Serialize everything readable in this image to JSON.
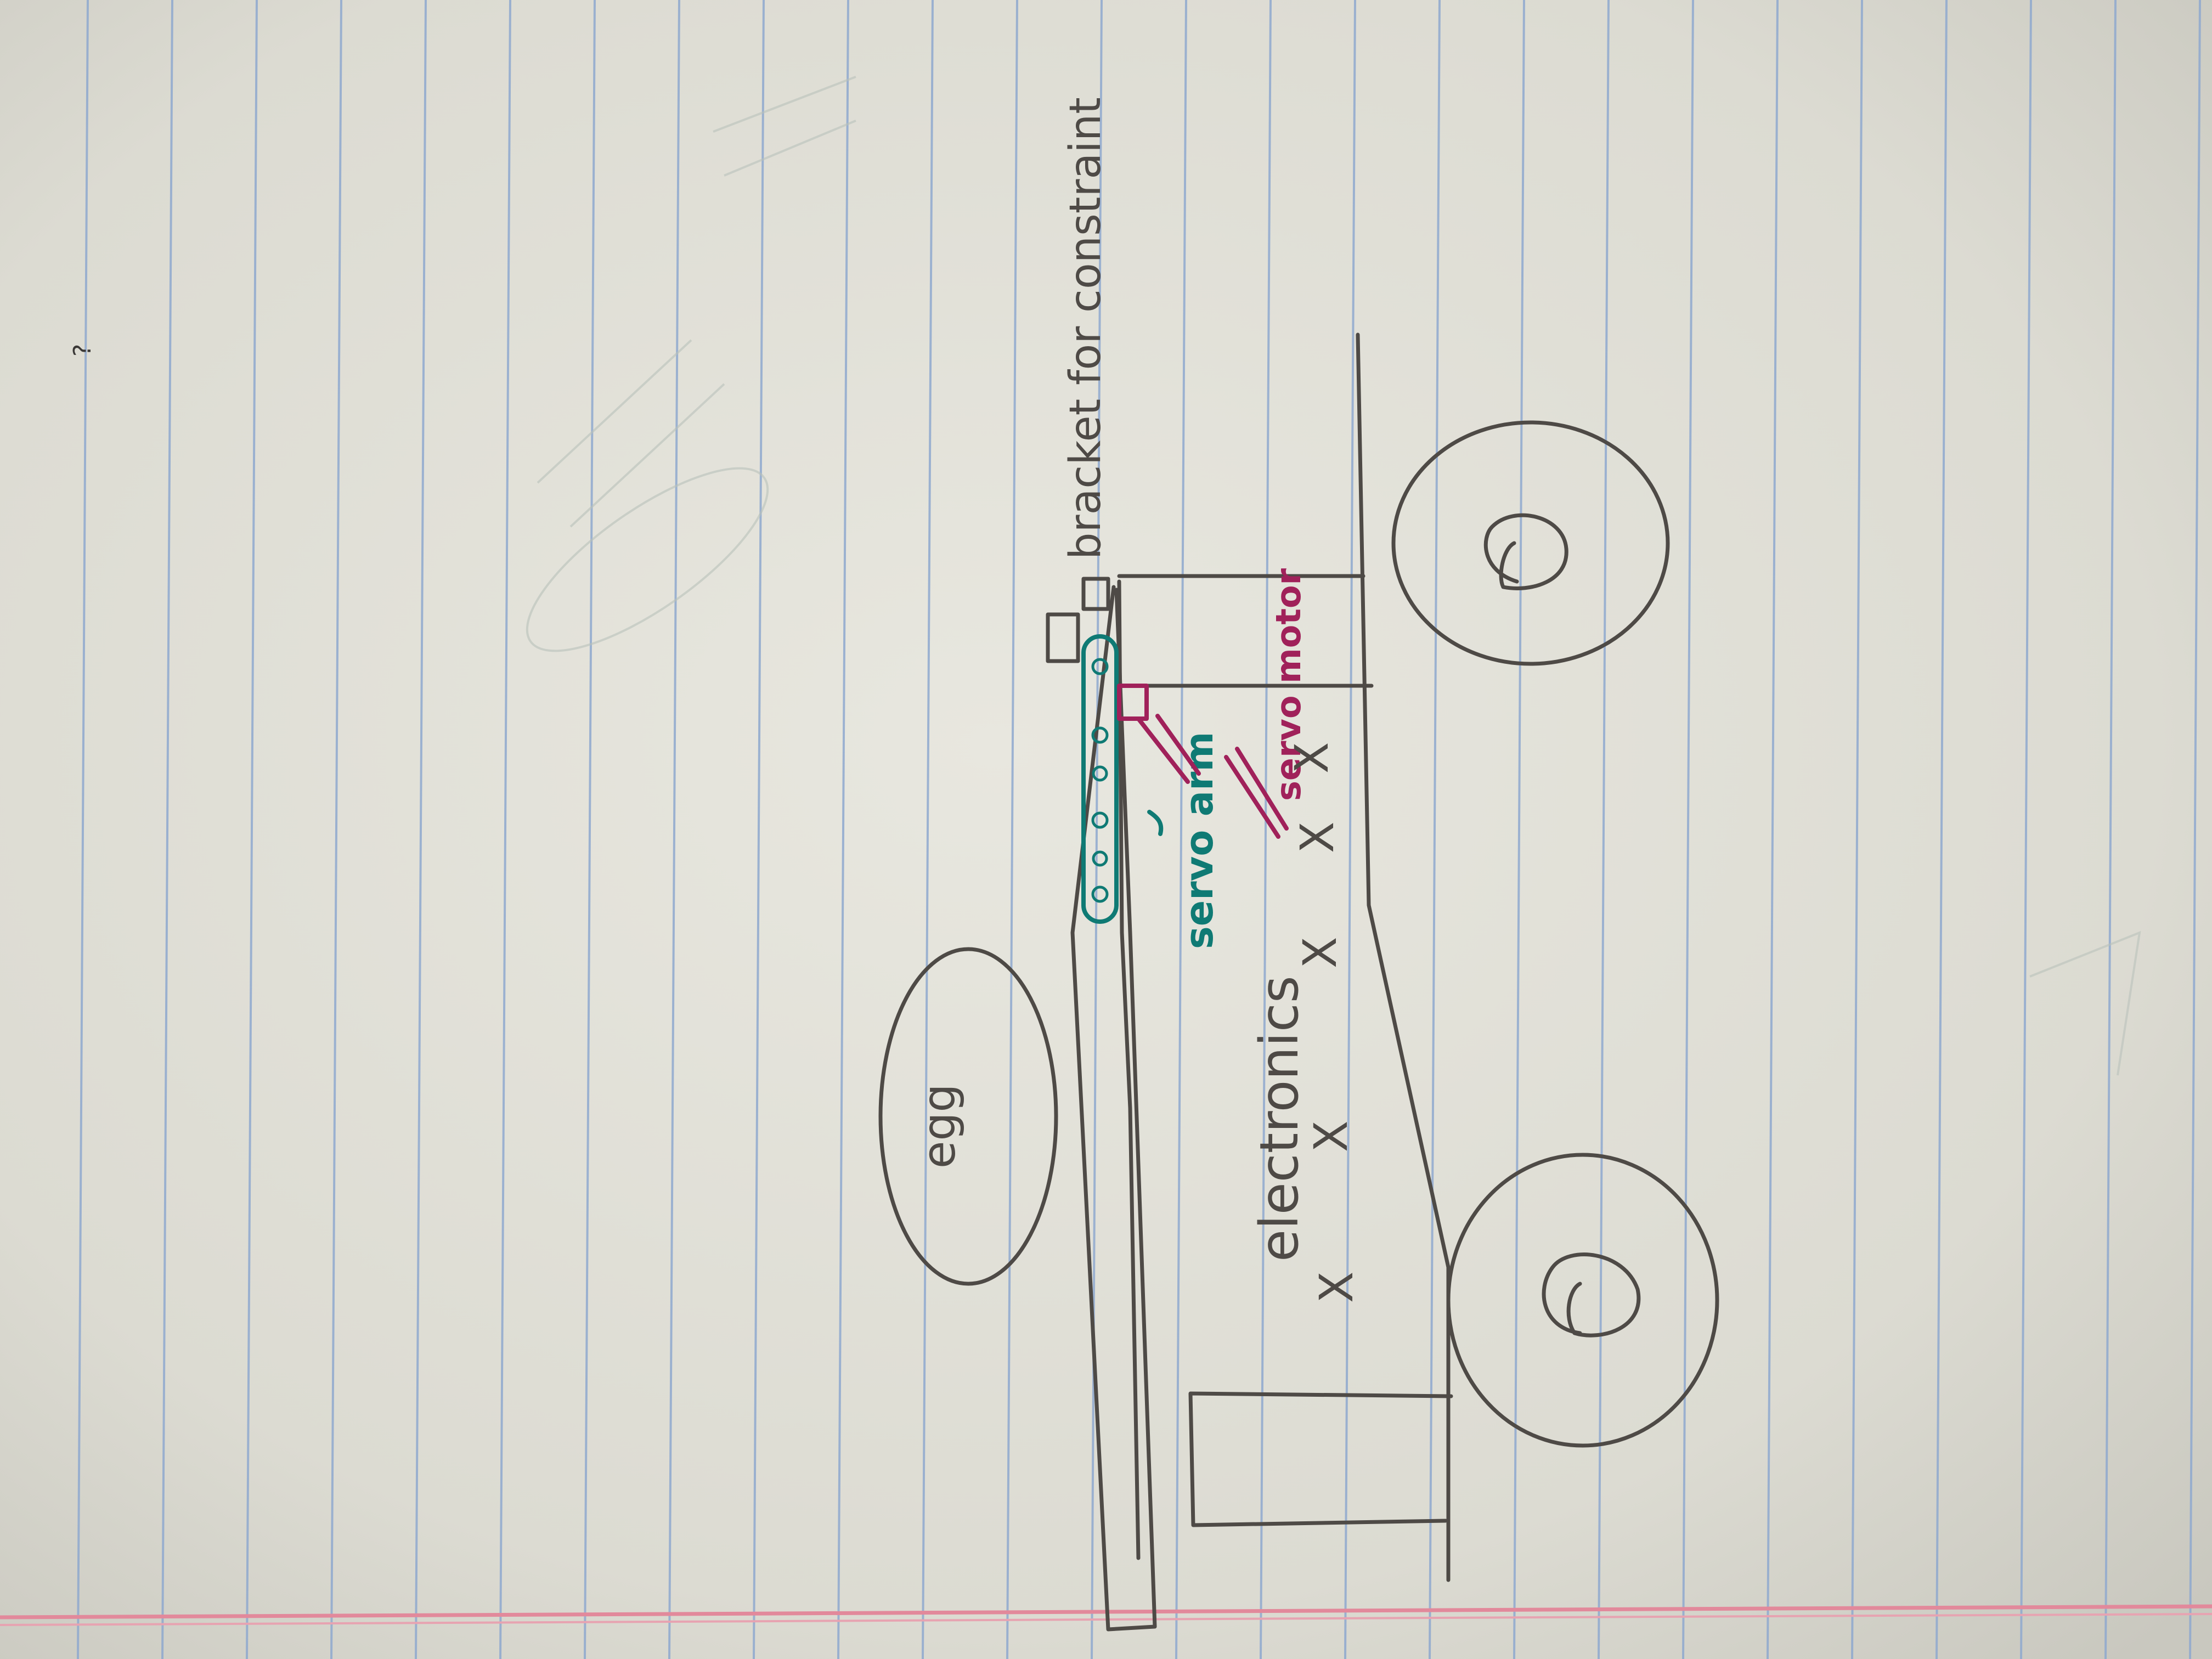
{
  "sketch": {
    "labels": {
      "bracket": "bracket for constraint",
      "servo_arm": "servo arm",
      "servo_motor": "servo motor",
      "electronics": "electronics",
      "egg": "egg"
    },
    "marks": {
      "x": "X",
      "page_corner": "?"
    }
  },
  "colors": {
    "paper": "#e3e2da",
    "rule_line": "#8fa9cf",
    "margin_line": "#e2899b",
    "pencil": "#4e4a46",
    "teal_ink": "#0f7a74",
    "magenta_ink": "#a0215a"
  }
}
